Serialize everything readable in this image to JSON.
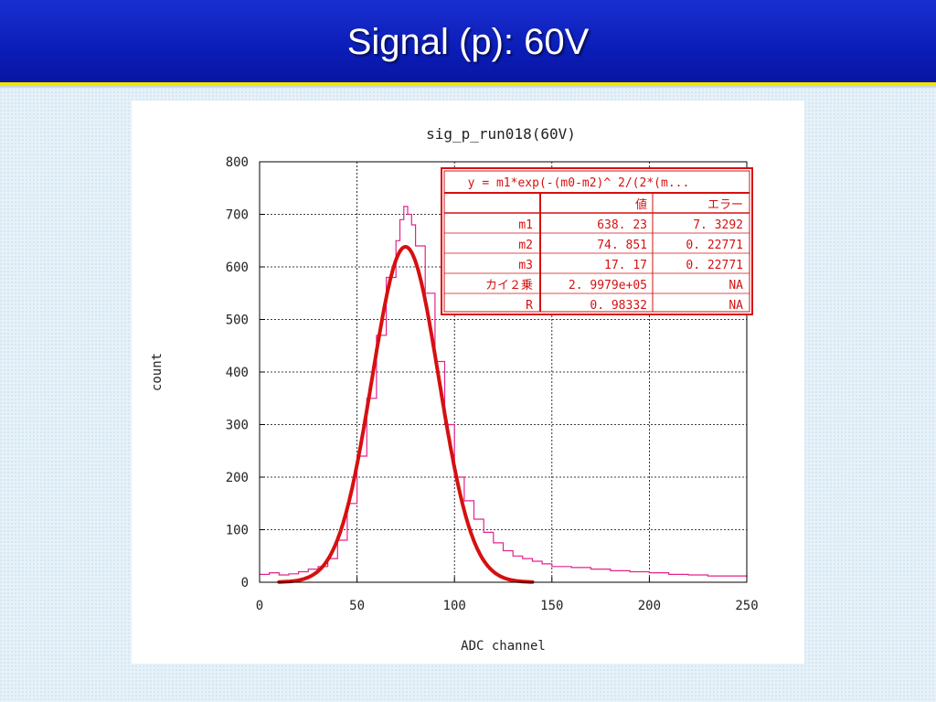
{
  "slide": {
    "title": "Signal (p):  60V"
  },
  "colors": {
    "banner": "#0b1db8",
    "banner_border": "#f2e400",
    "histogram": "#e0248c",
    "fit": "#d61010",
    "table_border": "#d61010"
  },
  "fit_table": {
    "formula": "y = m1*exp(-(m0-m2)^ 2/(2*(m...",
    "header_value": "値",
    "header_error": "エラー",
    "rows": [
      {
        "name": "m1",
        "value": "638. 23",
        "error": "7. 3292"
      },
      {
        "name": "m2",
        "value": "74. 851",
        "error": "0. 22771"
      },
      {
        "name": "m3",
        "value": "17. 17",
        "error": "0. 22771"
      },
      {
        "name": "カイ２乗",
        "value": "2. 9979e+05",
        "error": "NA"
      },
      {
        "name": "R",
        "value": "0. 98332",
        "error": "NA"
      }
    ]
  },
  "chart_data": {
    "type": "line",
    "title": "sig_p_run018(60V)",
    "xlabel": "ADC channel",
    "ylabel": "count",
    "xlim": [
      0,
      250
    ],
    "ylim": [
      0,
      800
    ],
    "xticks": [
      "0",
      "50",
      "100",
      "150",
      "200",
      "250"
    ],
    "yticks": [
      "0",
      "100",
      "200",
      "300",
      "400",
      "500",
      "600",
      "700",
      "800"
    ],
    "grid": true,
    "series": [
      {
        "kind": "histogram",
        "color": "#e0248c",
        "x": [
          0,
          5,
          10,
          15,
          20,
          25,
          30,
          35,
          40,
          45,
          50,
          55,
          60,
          65,
          70,
          72,
          74,
          76,
          78,
          80,
          85,
          90,
          95,
          100,
          105,
          110,
          115,
          120,
          125,
          130,
          135,
          140,
          145,
          150,
          160,
          170,
          180,
          190,
          200,
          210,
          220,
          230,
          240,
          250
        ],
        "y": [
          15,
          18,
          14,
          16,
          20,
          25,
          30,
          45,
          80,
          150,
          240,
          350,
          470,
          580,
          650,
          690,
          715,
          700,
          680,
          640,
          550,
          420,
          300,
          200,
          155,
          120,
          95,
          75,
          60,
          50,
          45,
          40,
          35,
          30,
          28,
          25,
          22,
          20,
          18,
          15,
          14,
          12,
          12,
          10
        ]
      },
      {
        "kind": "gaussian-fit",
        "color": "#d61010",
        "m1": 638.23,
        "m2": 74.851,
        "m3": 17.17,
        "xrange": [
          10,
          140
        ]
      }
    ]
  }
}
